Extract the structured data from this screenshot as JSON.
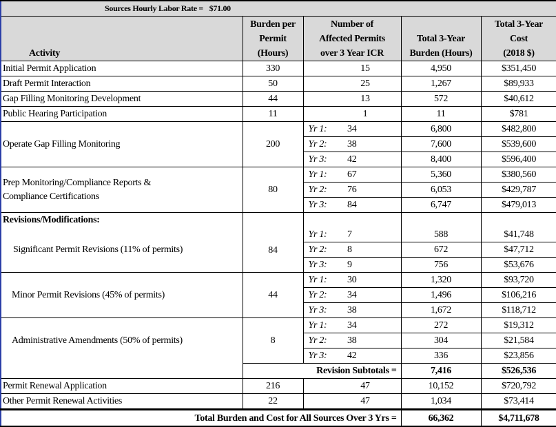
{
  "title": {
    "label": "Sources Hourly Labor Rate =",
    "rate": "$71.00"
  },
  "headers": {
    "activity": "Activity",
    "burden": [
      "Burden per",
      "Permit",
      "(Hours)"
    ],
    "permits": [
      "Number of",
      "Affected Permits",
      "over 3 Year ICR"
    ],
    "total_hours": [
      "Total 3-Year",
      "Burden (Hours)"
    ],
    "cost": [
      "Total 3-Year",
      "Cost",
      "(2018 $)"
    ]
  },
  "simple_rows": [
    {
      "activity": "Initial Permit Application",
      "burden": "330",
      "permits": "15",
      "hours": "4,950",
      "cost": "$351,450"
    },
    {
      "activity": "Draft Permit Interaction",
      "burden": "50",
      "permits": "25",
      "hours": "1,267",
      "cost": "$89,933"
    },
    {
      "activity": "Gap Filling Monitoring Development",
      "burden": "44",
      "permits": "13",
      "hours": "572",
      "cost": "$40,612"
    },
    {
      "activity": "Public Hearing Participation",
      "burden": "11",
      "permits": "1",
      "hours": "11",
      "cost": "$781"
    }
  ],
  "yr_labels": [
    "Yr 1:",
    "Yr 2:",
    "Yr 3:"
  ],
  "groups": {
    "operate": {
      "activity": "Operate Gap Filling Monitoring",
      "burden": "200",
      "years": [
        {
          "permits": "34",
          "hours": "6,800",
          "cost": "$482,800"
        },
        {
          "permits": "38",
          "hours": "7,600",
          "cost": "$539,600"
        },
        {
          "permits": "42",
          "hours": "8,400",
          "cost": "$596,400"
        }
      ]
    },
    "prep": {
      "activity": [
        "Prep Monitoring/Compliance Reports &",
        "Compliance Certifications"
      ],
      "burden": "80",
      "years": [
        {
          "permits": "67",
          "hours": "5,360",
          "cost": "$380,560"
        },
        {
          "permits": "76",
          "hours": "6,053",
          "cost": "$429,787"
        },
        {
          "permits": "84",
          "hours": "6,747",
          "cost": "$479,013"
        }
      ]
    },
    "revisions_heading": "Revisions/Modifications:",
    "significant": {
      "activity": "Significant Permit Revisions (11% of permits)",
      "burden": "84",
      "years": [
        {
          "permits": "7",
          "hours": "588",
          "cost": "$41,748"
        },
        {
          "permits": "8",
          "hours": "672",
          "cost": "$47,712"
        },
        {
          "permits": "9",
          "hours": "756",
          "cost": "$53,676"
        }
      ]
    },
    "minor": {
      "activity": "Minor Permit Revisions  (45% of permits)",
      "burden": "44",
      "years": [
        {
          "permits": "30",
          "hours": "1,320",
          "cost": "$93,720"
        },
        {
          "permits": "34",
          "hours": "1,496",
          "cost": "$106,216"
        },
        {
          "permits": "38",
          "hours": "1,672",
          "cost": "$118,712"
        }
      ]
    },
    "admin": {
      "activity": "Administrative Amendments (50% of permits)",
      "burden": "8",
      "years": [
        {
          "permits": "34",
          "hours": "272",
          "cost": "$19,312"
        },
        {
          "permits": "38",
          "hours": "304",
          "cost": "$21,584"
        },
        {
          "permits": "42",
          "hours": "336",
          "cost": "$23,856"
        }
      ]
    }
  },
  "subtotal": {
    "label": "Revision Subtotals =",
    "hours": "7,416",
    "cost": "$526,536"
  },
  "renewal_rows": [
    {
      "activity": "Permit Renewal Application",
      "burden": "216",
      "permits": "47",
      "hours": "10,152",
      "cost": "$720,792"
    },
    {
      "activity": "Other Permit Renewal Activities",
      "burden": "22",
      "permits": "47",
      "hours": "1,034",
      "cost": "$73,414"
    }
  ],
  "total": {
    "label": "Total Burden and Cost for All Sources Over 3 Yrs =",
    "hours": "66,362",
    "cost": "$4,711,678"
  }
}
